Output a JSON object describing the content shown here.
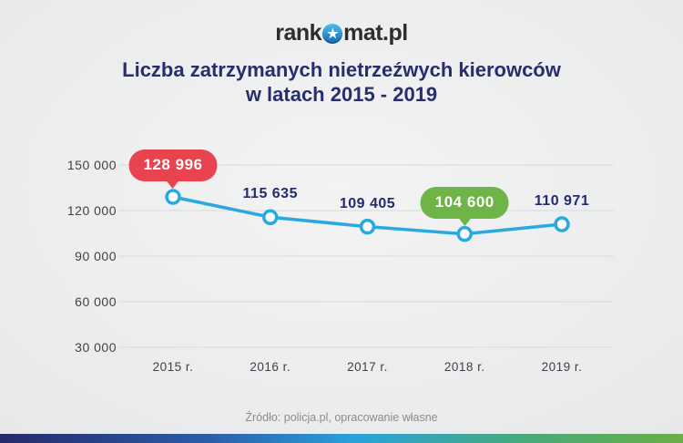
{
  "logo": {
    "part1": "rank",
    "part2": "mat.pl",
    "star_glyph": "★"
  },
  "title": {
    "line1": "Liczba zatrzymanych nietrzeźwych kierowców",
    "line2": "w latach 2015 - 2019",
    "color": "#272e6d"
  },
  "footer": {
    "source": "Źródło: policja.pl, opracowanie własne"
  },
  "colors": {
    "line": "#29a9e0",
    "highlight_max": "#e8434e",
    "highlight_min": "#6fb447",
    "title_navy": "#272e6d",
    "axis_text": "#414044",
    "gridline": "#d9dadb",
    "bottom_bar_gradient": [
      "#252a6a",
      "#2b5ca6",
      "#2aa2da",
      "#46aa7c",
      "#6aae47"
    ]
  },
  "chart_data": {
    "type": "line",
    "title": "Liczba zatrzymanych nietrzeźwych kierowców w latach 2015 - 2019",
    "categories": [
      "2015 r.",
      "2016 r.",
      "2017 r.",
      "2018 r.",
      "2019 r."
    ],
    "values": [
      128996,
      115635,
      109405,
      104600,
      110971
    ],
    "value_labels": [
      "128 996",
      "115 635",
      "109 405",
      "104 600",
      "110 971"
    ],
    "highlights": [
      {
        "index": 0,
        "color": "#e8434e",
        "meaning": "maximum"
      },
      {
        "index": 3,
        "color": "#6fb447",
        "meaning": "minimum"
      }
    ],
    "y_ticks": [
      "30 000",
      "60 000",
      "90 000",
      "120 000",
      "150 000"
    ],
    "y_tick_values": [
      30000,
      60000,
      90000,
      120000,
      150000
    ],
    "ylim": [
      30000,
      150000
    ],
    "xlabel": "",
    "ylabel": "",
    "grid": true,
    "legend": false,
    "line_color": "#29a9e0",
    "marker": "open-circle",
    "source": "Źródło: policja.pl, opracowanie własne"
  }
}
